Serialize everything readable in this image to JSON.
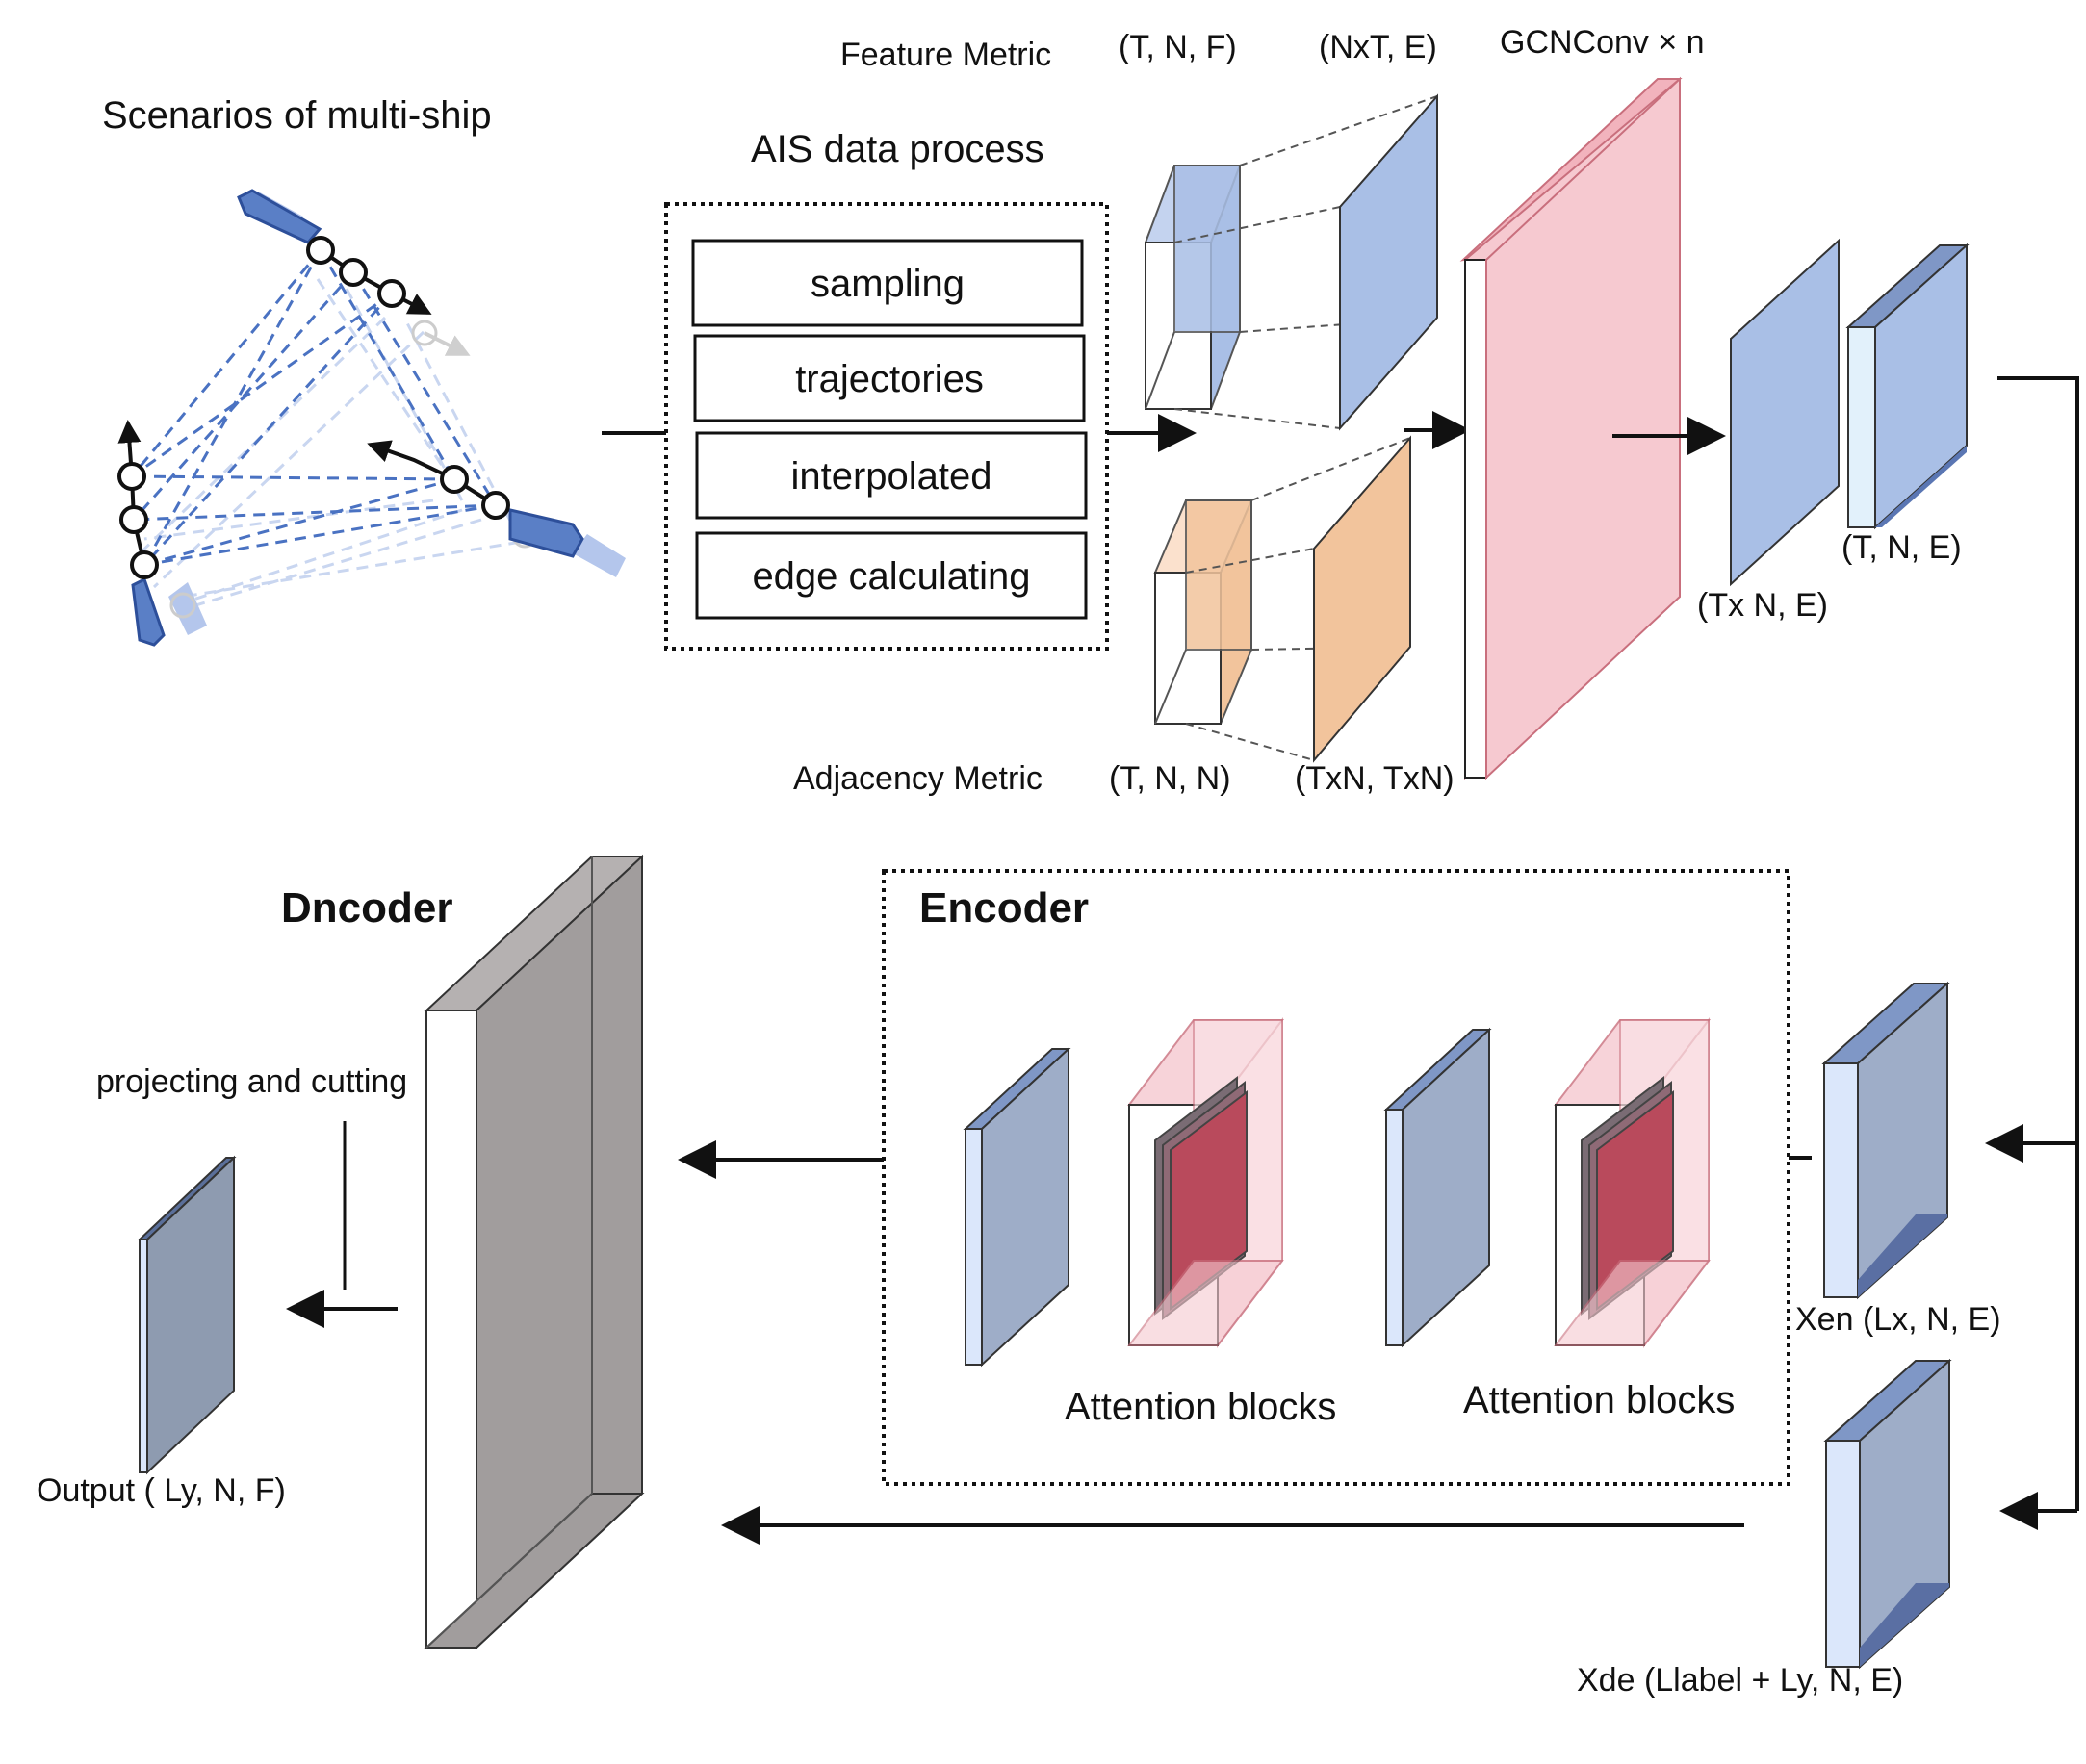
{
  "labels": {
    "scenarios": "Scenarios of multi-ship",
    "ais_title": "AIS data process",
    "feature_metric": "Feature Metric",
    "feature_dims": "(T, N, F)",
    "feature_flat_dims": "(NxT, E)",
    "gcn": "GCNConv × n",
    "adjacency_metric": "Adjacency Metric",
    "adj_dims": "(T, N, N)",
    "adj_flat_dims": "(TxN, TxN)",
    "gcn_out_flat": "(Tx N, E)",
    "gcn_out": "(T, N, E)",
    "decoder_title": "Dncoder",
    "encoder_title": "Encoder",
    "projecting": "projecting and cutting",
    "attention_1": "Attention blocks",
    "attention_2": "Attention blocks",
    "xen": "Xen (Lx, N, E)",
    "xde": "Xde (Llabel + Ly, N, E)",
    "output": "Output ( Ly, N, F)"
  },
  "ais_steps": [
    "sampling",
    "trajectories",
    "interpolated",
    "edge calculating"
  ],
  "colors": {
    "feature_blue": "#a9bfe6",
    "adjacency_orange": "#f2c49c",
    "gcn_pink": "#f6c9d0",
    "tensor_slate": "#9eadc8",
    "decoder_gray": "#a19d9d",
    "attention_red": "#b94a5c",
    "ship_blue": "#5a7fc6"
  }
}
